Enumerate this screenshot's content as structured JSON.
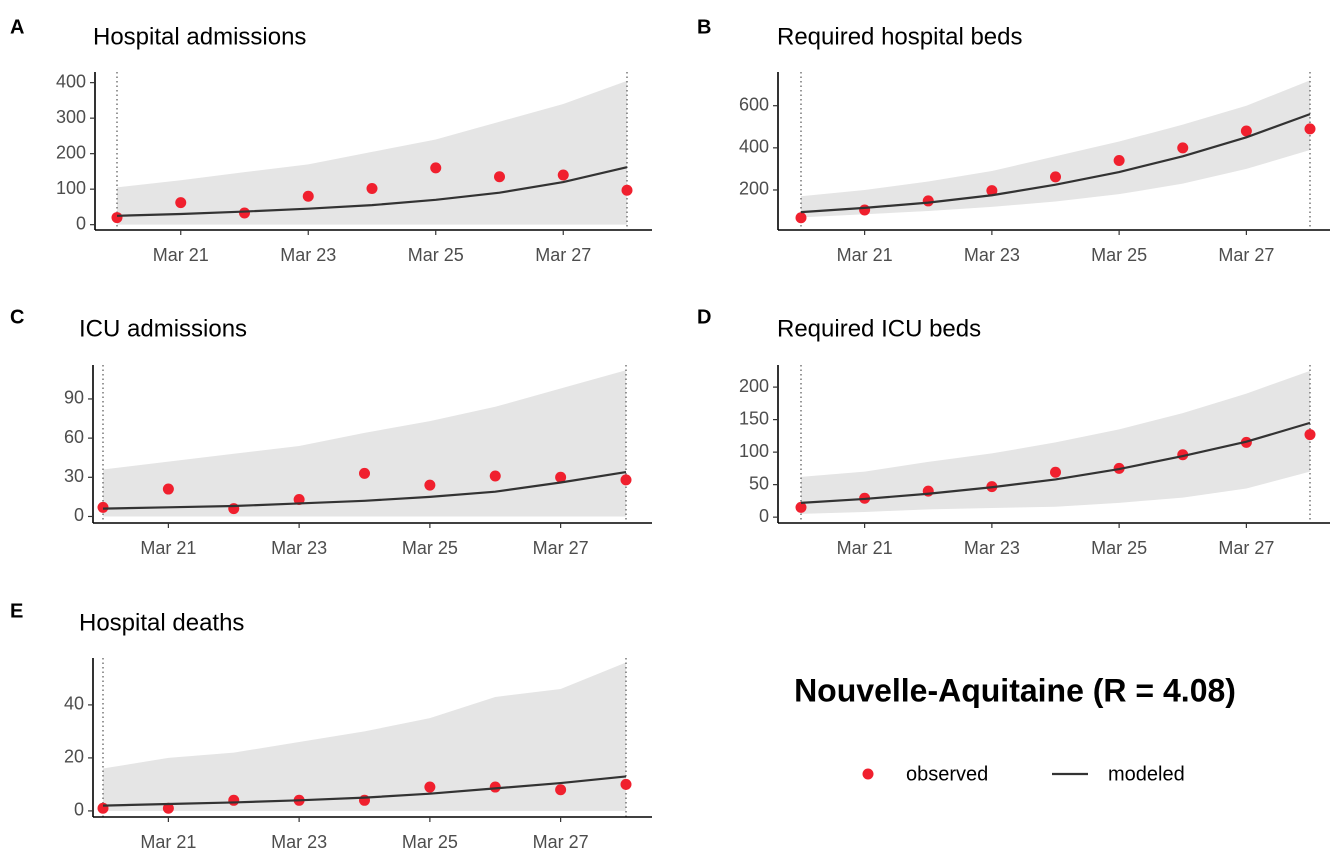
{
  "title": "Nouvelle-Aquitaine (R = 4.08)",
  "chart_data": [
    {
      "type": "line",
      "label": "A",
      "title": "Hospital admissions",
      "categories": [
        null,
        "Mar 21",
        null,
        "Mar 23",
        null,
        "Mar 25",
        null,
        "Mar 27",
        null
      ],
      "ylim": [
        -15,
        430
      ],
      "yticks": [
        0,
        100,
        200,
        300,
        400
      ],
      "band": {
        "color": "#e5e5e5",
        "lower": [
          0,
          0,
          0,
          0,
          0,
          0,
          0,
          0,
          0
        ],
        "upper": [
          105,
          125,
          148,
          170,
          205,
          240,
          290,
          340,
          405
        ]
      },
      "series": [
        {
          "name": "observed",
          "style": "points",
          "color": "#f0202e",
          "values": [
            20,
            62,
            33,
            80,
            102,
            160,
            135,
            140,
            97
          ]
        },
        {
          "name": "modeled",
          "style": "line",
          "color": "#333333",
          "values": [
            25,
            30,
            37,
            45,
            55,
            70,
            90,
            120,
            162
          ]
        }
      ]
    },
    {
      "type": "line",
      "label": "B",
      "title": "Required hospital beds",
      "categories": [
        null,
        "Mar 21",
        null,
        "Mar 23",
        null,
        "Mar 25",
        null,
        "Mar 27",
        null
      ],
      "ylim": [
        10,
        760
      ],
      "yticks": [
        200,
        400,
        600
      ],
      "band": {
        "color": "#e5e5e5",
        "lower": [
          70,
          85,
          100,
          120,
          145,
          180,
          230,
          300,
          390
        ],
        "upper": [
          170,
          200,
          240,
          290,
          360,
          430,
          510,
          600,
          720
        ]
      },
      "series": [
        {
          "name": "observed",
          "style": "points",
          "color": "#f0202e",
          "values": [
            68,
            105,
            148,
            197,
            262,
            340,
            400,
            480,
            490
          ]
        },
        {
          "name": "modeled",
          "style": "line",
          "color": "#333333",
          "values": [
            95,
            115,
            140,
            175,
            225,
            285,
            360,
            450,
            560
          ]
        }
      ]
    },
    {
      "type": "line",
      "label": "C",
      "title": "ICU admissions",
      "categories": [
        null,
        "Mar 21",
        null,
        "Mar 23",
        null,
        "Mar 25",
        null,
        "Mar 27",
        null
      ],
      "ylim": [
        -5,
        116
      ],
      "yticks": [
        0,
        30,
        60,
        90
      ],
      "band": {
        "color": "#e5e5e5",
        "lower": [
          0,
          0,
          0,
          0,
          0,
          0,
          0,
          0,
          0
        ],
        "upper": [
          36,
          42,
          48,
          54,
          64,
          73,
          84,
          98,
          112
        ]
      },
      "series": [
        {
          "name": "observed",
          "style": "points",
          "color": "#f0202e",
          "values": [
            7,
            21,
            6,
            13,
            33,
            24,
            31,
            30,
            28
          ]
        },
        {
          "name": "modeled",
          "style": "line",
          "color": "#333333",
          "values": [
            6,
            7,
            8,
            10,
            12,
            15,
            19,
            26,
            34
          ]
        }
      ]
    },
    {
      "type": "line",
      "label": "D",
      "title": "Required ICU beds",
      "categories": [
        null,
        "Mar 21",
        null,
        "Mar 23",
        null,
        "Mar 25",
        null,
        "Mar 27",
        null
      ],
      "ylim": [
        -9,
        234
      ],
      "yticks": [
        0,
        50,
        100,
        150,
        200
      ],
      "band": {
        "color": "#e5e5e5",
        "lower": [
          5,
          8,
          12,
          14,
          16,
          22,
          30,
          44,
          70
        ],
        "upper": [
          62,
          70,
          85,
          98,
          115,
          135,
          160,
          190,
          225
        ]
      },
      "series": [
        {
          "name": "observed",
          "style": "points",
          "color": "#f0202e",
          "values": [
            15,
            29,
            40,
            47,
            69,
            75,
            96,
            115,
            127
          ]
        },
        {
          "name": "modeled",
          "style": "line",
          "color": "#333333",
          "values": [
            22,
            28,
            36,
            46,
            58,
            74,
            94,
            116,
            145
          ]
        }
      ]
    },
    {
      "type": "line",
      "label": "E",
      "title": "Hospital deaths",
      "categories": [
        null,
        "Mar 21",
        null,
        "Mar 23",
        null,
        "Mar 25",
        null,
        "Mar 27",
        null
      ],
      "ylim": [
        -2.3,
        57.7
      ],
      "yticks": [
        0,
        20,
        40
      ],
      "band": {
        "color": "#e5e5e5",
        "lower": [
          0,
          0,
          0,
          0,
          0,
          0,
          0,
          0,
          0
        ],
        "upper": [
          16,
          20,
          22,
          26,
          30,
          35,
          43,
          46,
          56
        ]
      },
      "series": [
        {
          "name": "observed",
          "style": "points",
          "color": "#f0202e",
          "values": [
            1,
            1,
            4,
            4,
            4,
            9,
            9,
            8,
            10
          ]
        },
        {
          "name": "modeled",
          "style": "line",
          "color": "#333333",
          "values": [
            2,
            2.6,
            3.2,
            4,
            5,
            6.5,
            8.5,
            10.5,
            13
          ]
        }
      ]
    }
  ]
}
